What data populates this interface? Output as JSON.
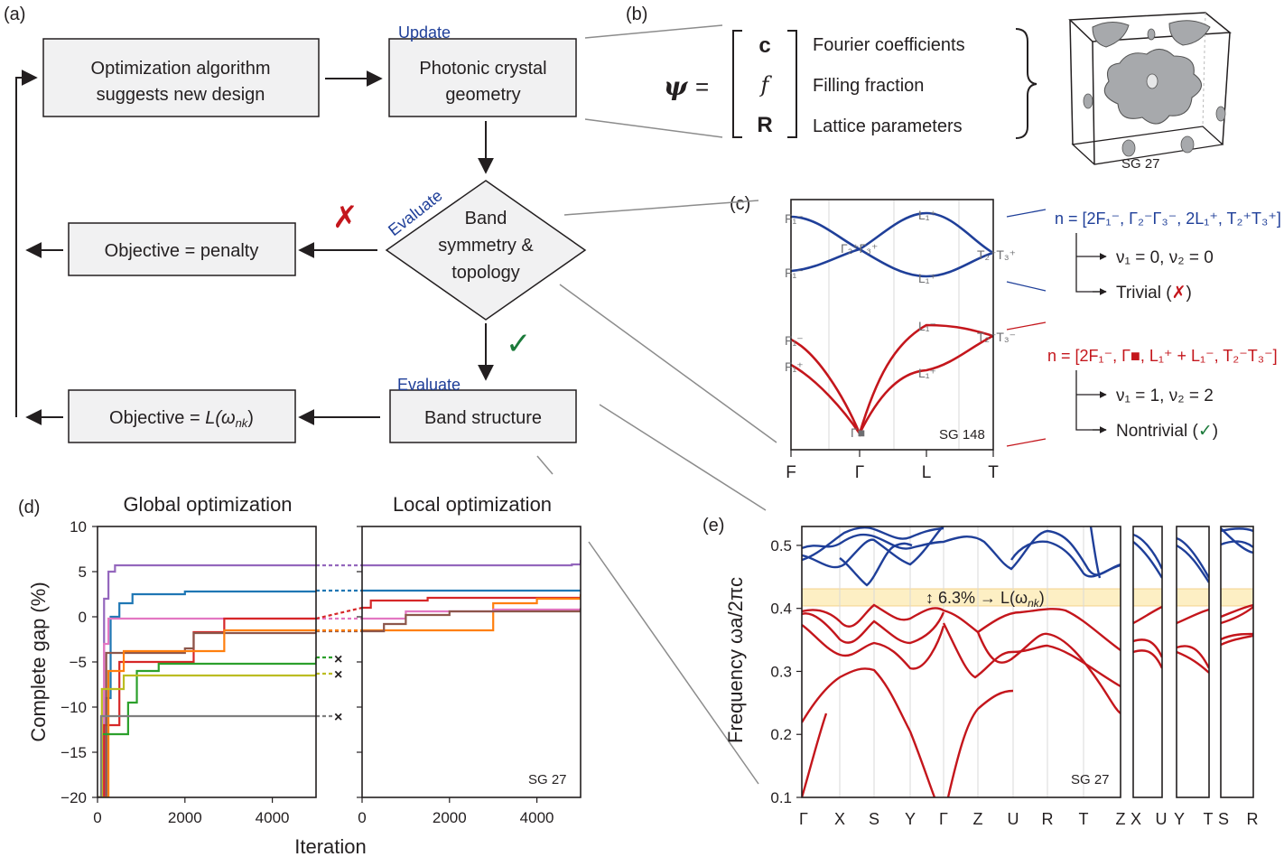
{
  "panel_labels": {
    "a": "(a)",
    "b": "(b)",
    "c": "(c)",
    "d": "(d)",
    "e": "(e)"
  },
  "flow": {
    "suggest_line1": "Optimization algorithm",
    "suggest_line2": "suggests new design",
    "geometry_line1": "Photonic crystal",
    "geometry_line2": "geometry",
    "update_tag": "Update",
    "evaluate_tag_1": "Evaluate",
    "evaluate_tag_2": "Evaluate",
    "band_line1": "Band",
    "band_line2": "symmetry &",
    "band_line3": "topology",
    "penalty": "Objective = penalty",
    "objective_prefix": "Objective = ",
    "objective_expr": "L(ω",
    "objective_sub": "nk",
    "objective_close": ")",
    "band_structure": "Band structure",
    "fail_mark": "✗",
    "pass_mark": "✓"
  },
  "panel_b": {
    "psi": "ψ",
    "equals": "=",
    "c": "c",
    "f": "f",
    "R": "R",
    "c_desc": "Fourier coefficients",
    "f_desc": "Filling fraction",
    "R_desc": "Lattice parameters",
    "sg": "SG 27"
  },
  "panel_c": {
    "sg": "SG 148",
    "xticks": [
      "F",
      "Γ",
      "L",
      "T"
    ],
    "blue_n": "n = [2F₁⁻, Γ₂⁻Γ₃⁻, 2L₁⁺, T₂⁺T₃⁺]",
    "blue_nu": "ν₁ = 0, ν₂ = 0",
    "blue_result": "Trivial (",
    "red_n": "n = [2F₁⁻, Γ■, L₁⁺ + L₁⁻, T₂⁻T₃⁻]",
    "red_nu": "ν₁ = 1, ν₂ = 2",
    "red_result": "Nontrivial (",
    "close": ")",
    "irreps": {
      "F1m": "F₁⁻",
      "F1p": "F₁⁺",
      "G23p": "Γ₂⁺Γ₃⁺",
      "L1p": "L₁⁺",
      "L1m": "L₁⁻",
      "T23p": "T₂⁺T₃⁺",
      "T23m": "T₂⁻T₃⁻",
      "Gsq": "Γ■"
    },
    "colors": {
      "blue": "#1f3f99",
      "red": "#c4161c"
    }
  },
  "panel_d": {
    "title_global": "Global optimization",
    "title_local": "Local optimization",
    "ylabel": "Complete gap (%)",
    "xlabel": "Iteration",
    "yticks": [
      "10",
      "5",
      "0",
      "−5",
      "−10",
      "−15",
      "−20"
    ],
    "xticks": [
      "0",
      "2000",
      "4000"
    ],
    "sg": "SG 27",
    "dead_marks": [
      "×",
      "×",
      "×"
    ]
  },
  "panel_e": {
    "ylabel": "Frequency ωa/2πc",
    "yticks": [
      "0.5",
      "0.4",
      "0.3",
      "0.2",
      "0.1"
    ],
    "xticks_main": [
      "Γ",
      "X",
      "S",
      "Y",
      "Γ",
      "Z",
      "U",
      "R",
      "T",
      "Z"
    ],
    "xticks_1": [
      "X",
      "U"
    ],
    "xticks_2": [
      "Y",
      "T"
    ],
    "xticks_3": [
      "S",
      "R"
    ],
    "gap_label": "↕ 6.3% → L(ω",
    "gap_sub": "nk",
    "gap_close": ")",
    "sg": "SG 27"
  },
  "chart_data": [
    {
      "type": "line",
      "title": "Global optimization",
      "xlabel": "Iteration",
      "ylabel": "Complete gap (%)",
      "xlim": [
        0,
        5000
      ],
      "ylim": [
        -20,
        10
      ],
      "series": [
        {
          "color": "#9467bd",
          "points": [
            [
              0,
              -20
            ],
            [
              150,
              2
            ],
            [
              250,
              5
            ],
            [
              400,
              5.7
            ],
            [
              5000,
              5.7
            ]
          ]
        },
        {
          "color": "#1f77b4",
          "points": [
            [
              0,
              -20
            ],
            [
              200,
              -9
            ],
            [
              300,
              0
            ],
            [
              500,
              1.5
            ],
            [
              800,
              2.5
            ],
            [
              2000,
              2.8
            ],
            [
              5000,
              2.9
            ]
          ]
        },
        {
          "color": "#e377c2",
          "points": [
            [
              0,
              -20
            ],
            [
              150,
              -3
            ],
            [
              250,
              -0.2
            ],
            [
              5000,
              -0.2
            ]
          ]
        },
        {
          "color": "#d62728",
          "points": [
            [
              0,
              -20
            ],
            [
              150,
              -12
            ],
            [
              500,
              -5
            ],
            [
              2100,
              -5
            ],
            [
              2200,
              -1.7
            ],
            [
              2700,
              -1.7
            ],
            [
              2900,
              -0.2
            ],
            [
              5000,
              -0.2
            ]
          ]
        },
        {
          "color": "#8c564b",
          "points": [
            [
              0,
              -20
            ],
            [
              200,
              -4
            ],
            [
              2000,
              -3.5
            ],
            [
              2200,
              -1.8
            ],
            [
              5000,
              -1.6
            ]
          ]
        },
        {
          "color": "#ff7f0e",
          "points": [
            [
              0,
              -20
            ],
            [
              250,
              -6
            ],
            [
              600,
              -3.8
            ],
            [
              2800,
              -3.8
            ],
            [
              2900,
              -1.5
            ],
            [
              5000,
              -1.5
            ]
          ]
        },
        {
          "color": "#2ca02c",
          "points": [
            [
              0,
              -20
            ],
            [
              100,
              -13
            ],
            [
              700,
              -9.5
            ],
            [
              900,
              -6
            ],
            [
              1400,
              -5.2
            ],
            [
              5000,
              -4.5
            ]
          ]
        },
        {
          "color": "#bcbd22",
          "points": [
            [
              0,
              -20
            ],
            [
              100,
              -8
            ],
            [
              600,
              -6.5
            ],
            [
              5000,
              -6.3
            ]
          ]
        },
        {
          "color": "#7f7f7f",
          "points": [
            [
              0,
              -20
            ],
            [
              80,
              -11
            ],
            [
              5000,
              -11
            ]
          ]
        }
      ]
    },
    {
      "type": "line",
      "title": "Local optimization",
      "xlabel": "Iteration",
      "xlim": [
        0,
        5000
      ],
      "ylim": [
        -20,
        10
      ],
      "series": [
        {
          "color": "#9467bd",
          "points": [
            [
              0,
              5.7
            ],
            [
              4800,
              5.8
            ],
            [
              5000,
              6.3
            ]
          ]
        },
        {
          "color": "#1f77b4",
          "points": [
            [
              0,
              2.9
            ],
            [
              5000,
              2.9
            ]
          ]
        },
        {
          "color": "#d62728",
          "points": [
            [
              0,
              1
            ],
            [
              200,
              1.8
            ],
            [
              1500,
              2.1
            ],
            [
              5000,
              2.2
            ]
          ]
        },
        {
          "color": "#ff7f0e",
          "points": [
            [
              0,
              -1.5
            ],
            [
              2950,
              -1.5
            ],
            [
              3000,
              1.5
            ],
            [
              4000,
              2
            ],
            [
              5000,
              2.5
            ]
          ]
        },
        {
          "color": "#e377c2",
          "points": [
            [
              0,
              -0.2
            ],
            [
              1000,
              0.6
            ],
            [
              3000,
              0.8
            ],
            [
              5000,
              1
            ]
          ]
        },
        {
          "color": "#8c564b",
          "points": [
            [
              0,
              -1.6
            ],
            [
              500,
              -0.8
            ],
            [
              1000,
              0.2
            ],
            [
              2000,
              0.6
            ],
            [
              5000,
              0.9
            ]
          ]
        }
      ]
    },
    {
      "type": "line",
      "title": "",
      "ylabel": "Frequency ωa/2πc",
      "ylim": [
        0.1,
        0.53
      ],
      "gap": [
        0.405,
        0.432
      ],
      "gap_percent": 6.3
    }
  ]
}
